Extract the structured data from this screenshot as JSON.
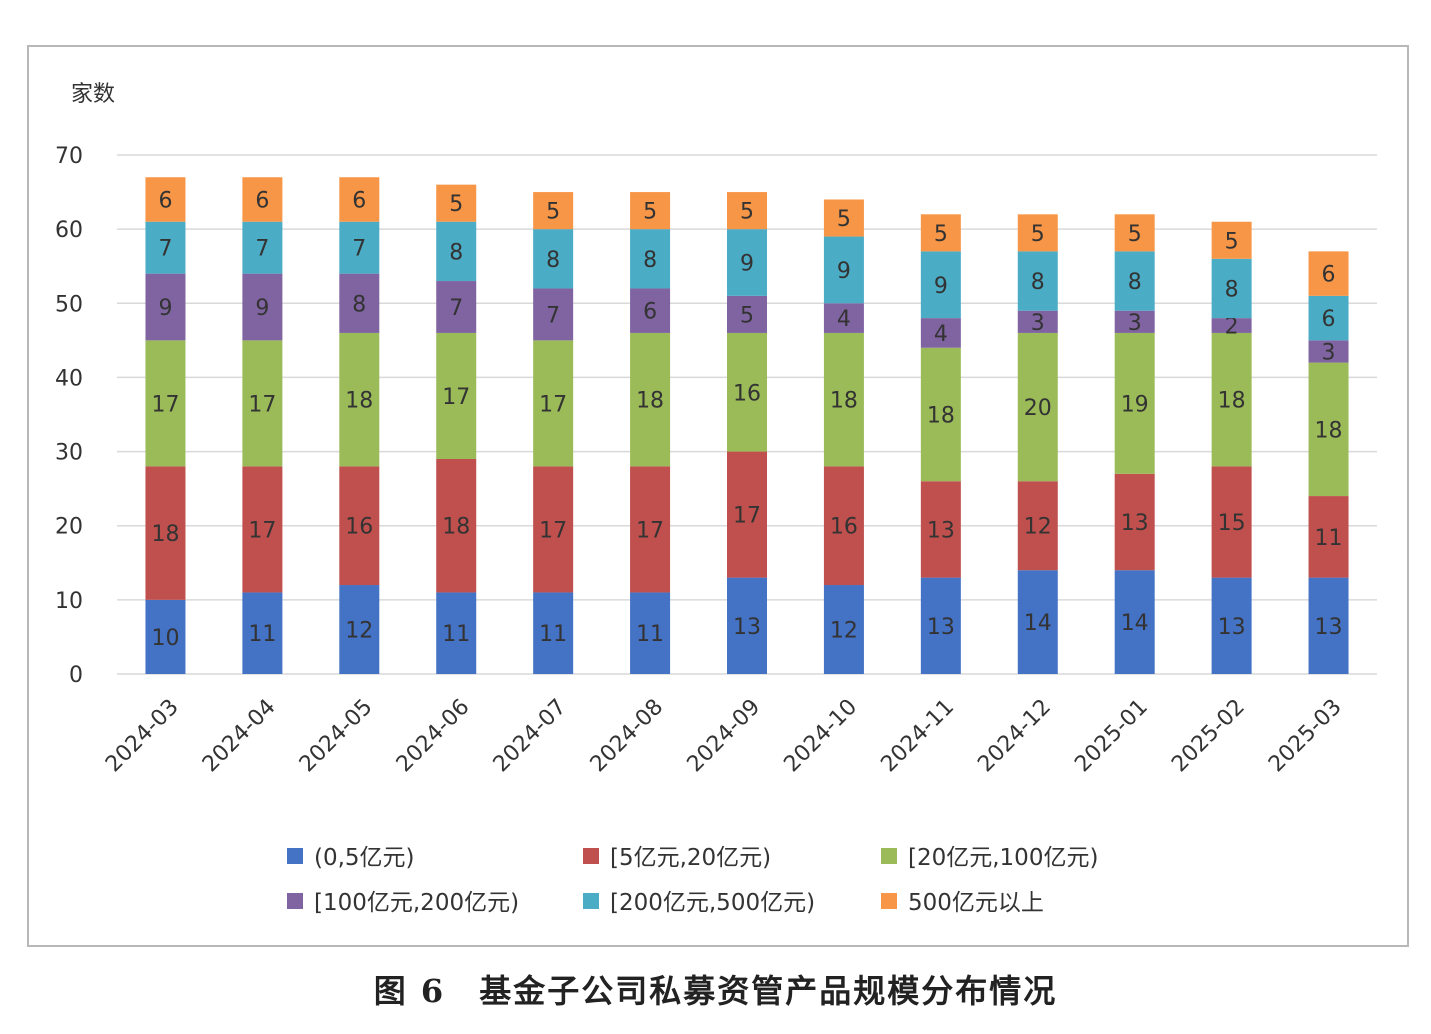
{
  "caption": "图 6　基金子公司私募资管产品规模分布情况",
  "chart_data": {
    "type": "bar",
    "stacked": true,
    "ylabel": "家数",
    "ylim": [
      0,
      70
    ],
    "yticks": [
      0,
      10,
      20,
      30,
      40,
      50,
      60,
      70
    ],
    "grid": true,
    "legend_position": "bottom",
    "categories": [
      "2024-03",
      "2024-04",
      "2024-05",
      "2024-06",
      "2024-07",
      "2024-08",
      "2024-09",
      "2024-10",
      "2024-11",
      "2024-12",
      "2025-01",
      "2025-02",
      "2025-03"
    ],
    "series": [
      {
        "name": "(0,5亿元)",
        "color": "#4472c4",
        "values": [
          10,
          11,
          12,
          11,
          11,
          11,
          13,
          12,
          13,
          14,
          14,
          13,
          13
        ]
      },
      {
        "name": "[5亿元,20亿元)",
        "color": "#c0504d",
        "values": [
          18,
          17,
          16,
          18,
          17,
          17,
          17,
          16,
          13,
          12,
          13,
          15,
          11
        ]
      },
      {
        "name": "[20亿元,100亿元)",
        "color": "#9bbb59",
        "values": [
          17,
          17,
          18,
          17,
          17,
          18,
          16,
          18,
          18,
          20,
          19,
          18,
          18
        ]
      },
      {
        "name": "[100亿元,200亿元)",
        "color": "#8064a2",
        "values": [
          9,
          9,
          8,
          7,
          7,
          6,
          5,
          4,
          4,
          3,
          3,
          2,
          3
        ]
      },
      {
        "name": "[200亿元,500亿元)",
        "color": "#4bacc6",
        "values": [
          7,
          7,
          7,
          8,
          8,
          8,
          9,
          9,
          9,
          8,
          8,
          8,
          6
        ]
      },
      {
        "name": "500亿元以上",
        "color": "#f79646",
        "values": [
          6,
          6,
          6,
          5,
          5,
          5,
          5,
          5,
          5,
          5,
          5,
          5,
          6
        ]
      }
    ]
  }
}
